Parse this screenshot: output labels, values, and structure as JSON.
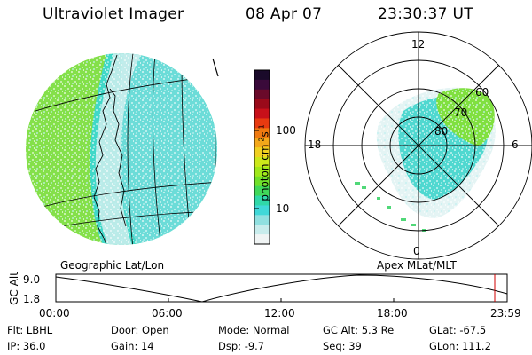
{
  "header": {
    "instrument": "Ultraviolet Imager",
    "date": "08 Apr 07",
    "time": "23:30:37 UT"
  },
  "panels": {
    "left_label": "Geographic Lat/Lon",
    "right_label": "Apex MLat/MLT"
  },
  "colorbar": {
    "unit": "photon cm",
    "unit_exp1": "-2",
    "unit_mid": "s",
    "unit_exp2": "-1",
    "ticks": [
      "100",
      "10"
    ],
    "colors": [
      "#1a0a2a",
      "#3a0a3a",
      "#6a0a2a",
      "#9a0a1a",
      "#c8101a",
      "#e83a10",
      "#f07a10",
      "#f4a81a",
      "#f0d020",
      "#cce81a",
      "#a0e81a",
      "#70e02a",
      "#40d85a",
      "#30d8a8",
      "#40d8d8",
      "#90e0e0",
      "#c8ecec",
      "#f0f4f4"
    ]
  },
  "polar": {
    "mlt_labels": [
      "12",
      "18",
      "6",
      "0"
    ],
    "lat_labels": [
      "60",
      "70",
      "80"
    ]
  },
  "timeline": {
    "ylabel": "GC Alt",
    "yticks": [
      "9.0",
      "1.8"
    ],
    "xticks": [
      "00:00",
      "06:00",
      "12:00",
      "18:00",
      "23:59"
    ]
  },
  "info": {
    "row1": [
      {
        "label": "Flt:",
        "value": "LBHL"
      },
      {
        "label": "Door:",
        "value": "Open"
      },
      {
        "label": "Mode:",
        "value": "Normal"
      },
      {
        "label": "GC Alt:",
        "value": "5.3 Re"
      },
      {
        "label": "GLat:",
        "value": "-67.5"
      }
    ],
    "row2": [
      {
        "label": "IP:",
        "value": "36.0"
      },
      {
        "label": "Gain:",
        "value": "14"
      },
      {
        "label": "Dsp:",
        "value": "-9.7"
      },
      {
        "label": "Seq:",
        "value": "39"
      },
      {
        "label": "GLon:",
        "value": "111.2"
      }
    ]
  }
}
